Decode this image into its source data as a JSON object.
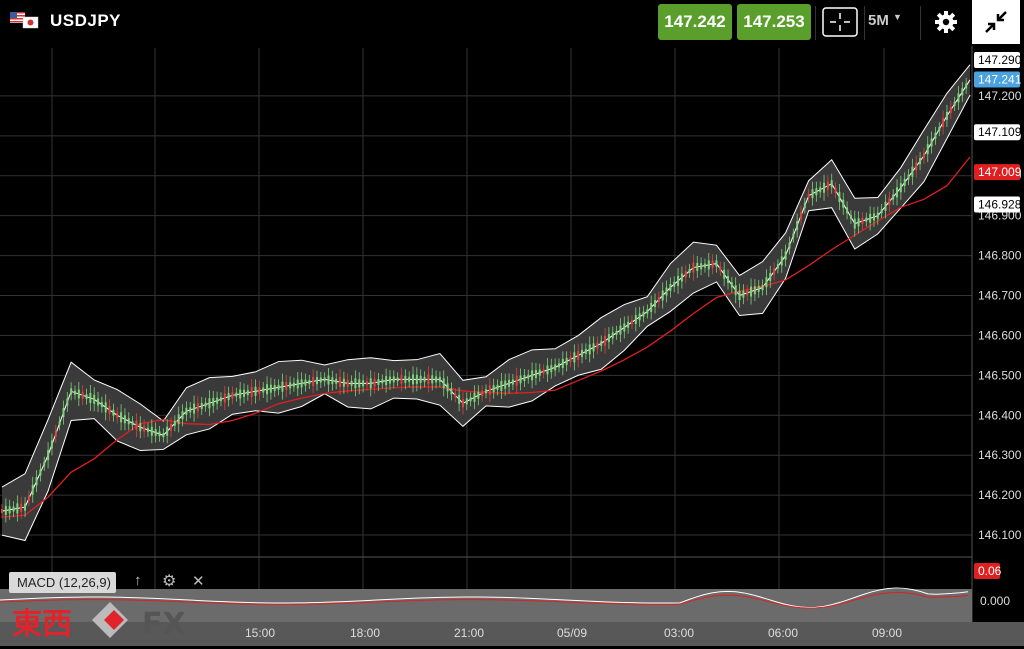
{
  "header": {
    "symbol": "USDJPY",
    "bid": "147.242",
    "ask": "147.253",
    "timeframe": "5M"
  },
  "price_axis": {
    "ticks": [
      "147.200",
      "147.100",
      "147.000",
      "146.900",
      "146.800",
      "146.700",
      "146.600",
      "146.500",
      "146.400",
      "146.300",
      "146.200",
      "146.100"
    ],
    "tags": [
      {
        "value": "147.290",
        "bg": "#ffffff",
        "fg": "#000000"
      },
      {
        "value": "147.241",
        "bg": "#4aa3df",
        "fg": "#ffffff"
      },
      {
        "value": "147.109",
        "bg": "#ffffff",
        "fg": "#000000"
      },
      {
        "value": "147.009",
        "bg": "#e02020",
        "fg": "#ffffff"
      },
      {
        "value": "146.928",
        "bg": "#ffffff",
        "fg": "#000000"
      }
    ]
  },
  "macd": {
    "label": "MACD (12,26,9)",
    "value_tag": "0.06",
    "zero_tick": "0.000"
  },
  "time_axis": [
    "15:00",
    "18:00",
    "21:00",
    "05/09",
    "03:00",
    "06:00",
    "09:00"
  ],
  "logo": {
    "kanji": "東西",
    "fx": "FX"
  },
  "colors": {
    "up": "#7ed37a",
    "down": "#e04040",
    "accent_green": "#5a9e2b",
    "ma": "#e02020",
    "band": "#ffffff"
  },
  "chart_data": {
    "type": "line",
    "title": "",
    "ylim": [
      146.05,
      147.32
    ],
    "x_ticks": [
      "15:00",
      "18:00",
      "21:00",
      "05/09",
      "03:00",
      "06:00",
      "09:00"
    ],
    "series": [
      {
        "values": [
          146.16,
          146.17,
          146.3,
          146.46,
          146.44,
          146.4,
          146.37,
          146.35,
          146.41,
          146.43,
          146.45,
          146.46,
          146.47,
          146.48,
          146.49,
          146.48,
          146.48,
          146.49,
          146.49,
          146.49,
          146.43,
          146.46,
          146.48,
          146.5,
          146.52,
          146.55,
          146.58,
          146.62,
          146.66,
          146.72,
          146.77,
          146.78,
          146.7,
          146.72,
          146.8,
          146.95,
          146.98,
          146.88,
          146.9,
          146.97,
          147.05,
          147.15,
          147.24
        ]
      }
    ]
  }
}
